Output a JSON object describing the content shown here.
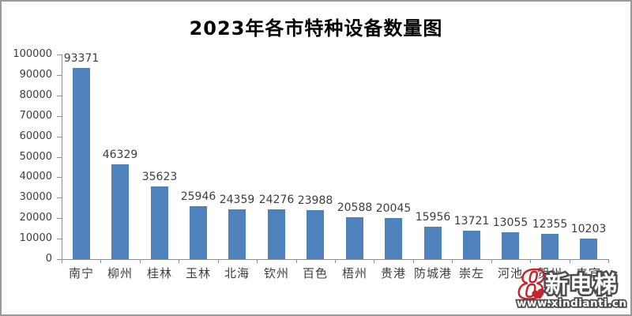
{
  "title": "2023年各市特种设备数量图",
  "chart_data": {
    "type": "bar",
    "title": "2023年各市特种设备数量图",
    "categories": [
      "南宁",
      "柳州",
      "桂林",
      "玉林",
      "北海",
      "钦州",
      "百色",
      "梧州",
      "贵港",
      "防城港",
      "崇左",
      "河池",
      "贺州",
      "来宾"
    ],
    "values": [
      93371,
      46329,
      35623,
      25946,
      24359,
      24276,
      23988,
      20588,
      20045,
      15956,
      13721,
      13055,
      12355,
      10203
    ],
    "xlabel": "",
    "ylabel": "",
    "ylim": [
      0,
      100000
    ],
    "yticks": [
      0,
      10000,
      20000,
      30000,
      40000,
      50000,
      60000,
      70000,
      80000,
      90000,
      100000
    ],
    "grid": false,
    "legend": "none",
    "data_labels": true,
    "bar_color": "#4f81bd"
  },
  "watermark": {
    "logo_char": "8",
    "heart_icon": "heart-icon",
    "brand": "新电梯",
    "url": "www.xindianti.cn",
    "logo_color": "#c8242b",
    "text_fill": "#ffffff",
    "text_outline": "#4d4d4d"
  },
  "colors": {
    "bar": "#4f81bd",
    "axis": "#8e8e8e",
    "label_text": "#3d3d3d",
    "title_text": "#000000",
    "border": "#999999",
    "background": "#ffffff"
  }
}
